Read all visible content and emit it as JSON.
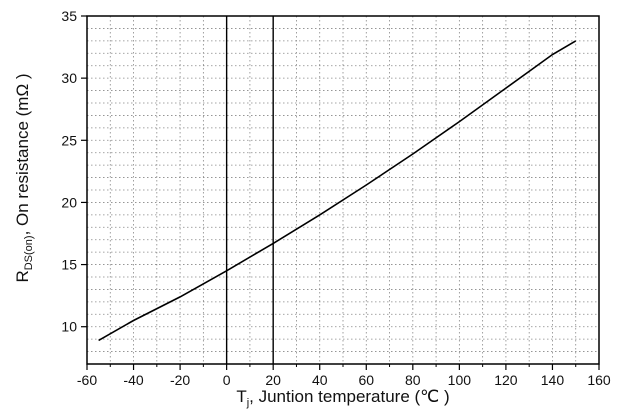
{
  "chart_data": {
    "type": "line",
    "title": "",
    "xlabel_main": "T",
    "xlabel_sub": "j",
    "xlabel_rest": ", Juntion temperature (℃ )",
    "ylabel_main": "R",
    "ylabel_sub": "DS(on)",
    "ylabel_rest": ", On resistance (mΩ )",
    "xlim": [
      -60,
      160
    ],
    "ylim": [
      7,
      35
    ],
    "xticks": [
      -60,
      -40,
      -20,
      0,
      20,
      40,
      60,
      80,
      100,
      120,
      140,
      160
    ],
    "yticks": [
      10,
      15,
      20,
      25,
      30,
      35
    ],
    "grid": "dotted",
    "highlighted_vlines": [
      0,
      20
    ],
    "series": [
      {
        "x": [
          -55,
          -40,
          -20,
          0,
          20,
          40,
          60,
          80,
          100,
          120,
          140,
          150
        ],
        "y": [
          8.9,
          10.5,
          12.4,
          14.5,
          16.7,
          19.0,
          21.4,
          23.9,
          26.5,
          29.2,
          31.9,
          33.0
        ]
      }
    ],
    "colors": {
      "line": "#000000",
      "grid": "#888888",
      "axis": "#000000"
    }
  }
}
